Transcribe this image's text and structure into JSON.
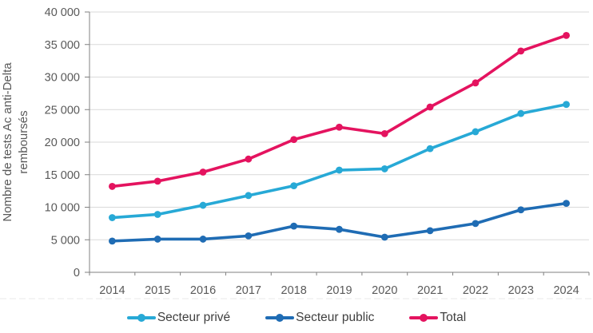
{
  "chart_data": {
    "type": "line",
    "title": "",
    "ylabel": "Nombre de tests Ac anti-Delta remboursés",
    "ylabel_lines": [
      "Nombre de tests Ac anti-Delta",
      "remboursés"
    ],
    "categories": [
      "2014",
      "2015",
      "2016",
      "2017",
      "2018",
      "2019",
      "2020",
      "2021",
      "2022",
      "2023",
      "2024"
    ],
    "series": [
      {
        "name": "Secteur privé",
        "color": "#27A9D6",
        "values": [
          8400,
          8900,
          10300,
          11800,
          13300,
          15700,
          15900,
          19000,
          21600,
          24400,
          25800
        ]
      },
      {
        "name": "Secteur public",
        "color": "#1F6CB4",
        "values": [
          4800,
          5100,
          5100,
          5600,
          7100,
          6600,
          5400,
          6400,
          7500,
          9600,
          10600
        ]
      },
      {
        "name": "Total",
        "color": "#E4135F",
        "values": [
          13200,
          14000,
          15400,
          17400,
          20400,
          22300,
          21300,
          25400,
          29100,
          34000,
          36400
        ]
      }
    ],
    "ylim": [
      0,
      40000
    ],
    "y_tick_step": 5000,
    "y_tick_labels": [
      "0",
      "5 000",
      "10 000",
      "15 000",
      "20 000",
      "25 000",
      "30 000",
      "35 000",
      "40 000"
    ],
    "grid": true,
    "legend_position": "bottom"
  },
  "colors": {
    "background": "#FFFFFF",
    "axis": "#808080",
    "grid": "#D9D9D9",
    "tick_text": "#595959",
    "legend_text": "#3F3F3F",
    "page_break_dash": "#E9E9E9"
  }
}
